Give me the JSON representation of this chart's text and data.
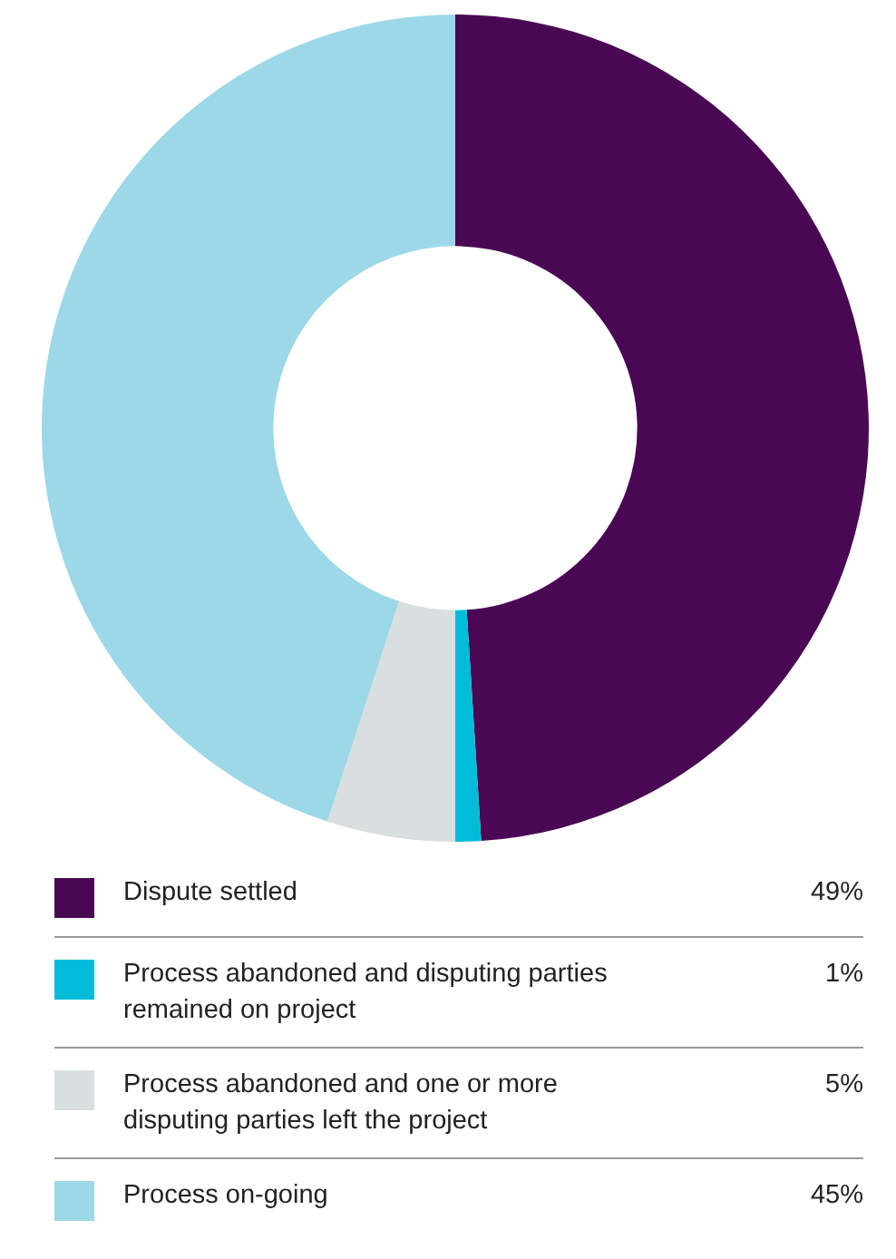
{
  "chart_data": {
    "type": "donut",
    "categories": [
      "Dispute settled",
      "Process abandoned and disputing parties remained on project",
      "Process abandoned and one or more disputing parties left the project",
      "Process on-going"
    ],
    "values": [
      49,
      1,
      5,
      45
    ],
    "colors": [
      "#4a0854",
      "#00bcd8",
      "#d9dfdf",
      "#9dd8e8"
    ],
    "value_labels": [
      "49%",
      "1%",
      "5%",
      "45%"
    ],
    "legend": "bottom"
  }
}
